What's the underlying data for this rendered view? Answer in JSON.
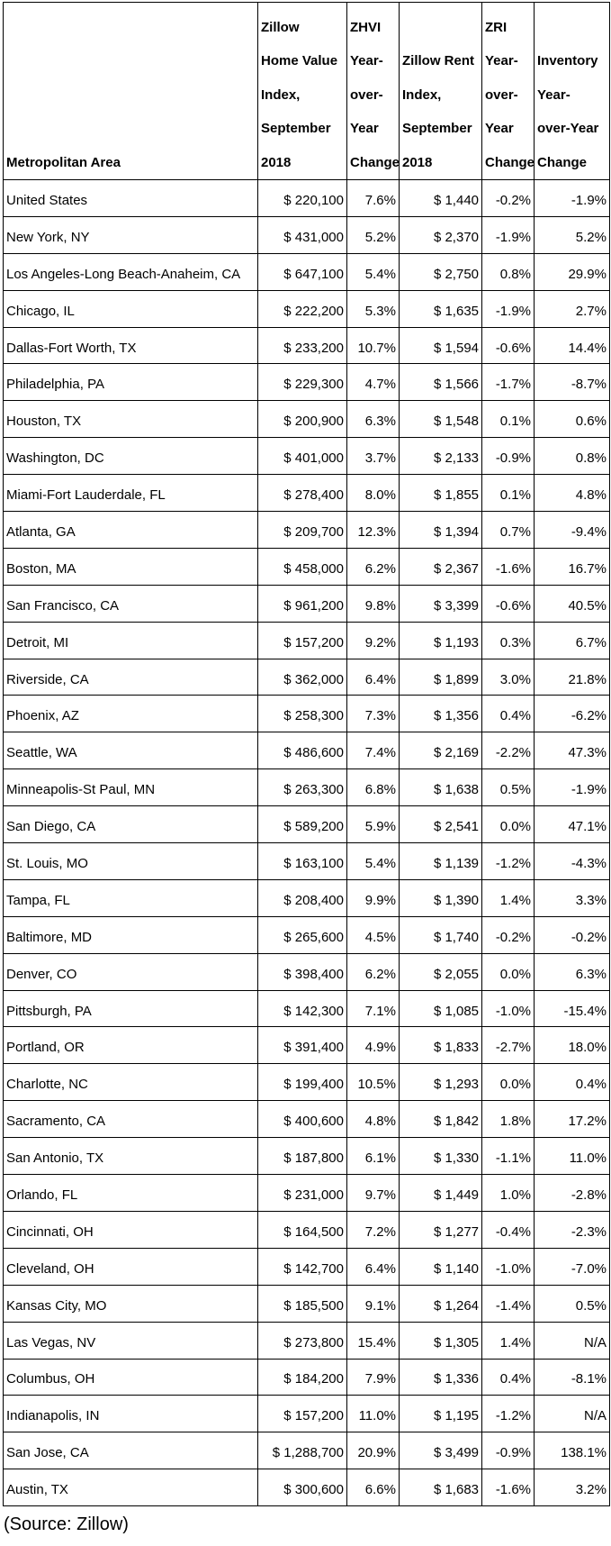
{
  "table": {
    "headers": [
      [
        "Metropolitan Area"
      ],
      [
        "Zillow",
        "Home Value",
        "Index,",
        "September",
        "2018"
      ],
      [
        "ZHVI",
        "Year-",
        "over-",
        "Year",
        "Change"
      ],
      [
        "Zillow Rent",
        "Index,",
        "September",
        "2018"
      ],
      [
        "ZRI",
        "Year-",
        "over-",
        "Year",
        "Change"
      ],
      [
        "Inventory",
        "Year-",
        "over-Year",
        "Change"
      ]
    ],
    "rows": [
      [
        "United States",
        "$ 220,100",
        "7.6%",
        "$ 1,440",
        "-0.2%",
        "-1.9%"
      ],
      [
        "New York, NY",
        "$ 431,000",
        "5.2%",
        "$ 2,370",
        "-1.9%",
        "5.2%"
      ],
      [
        "Los Angeles-Long Beach-Anaheim, CA",
        "$ 647,100",
        "5.4%",
        "$ 2,750",
        "0.8%",
        "29.9%"
      ],
      [
        "Chicago, IL",
        "$ 222,200",
        "5.3%",
        "$ 1,635",
        "-1.9%",
        "2.7%"
      ],
      [
        "Dallas-Fort Worth, TX",
        "$ 233,200",
        "10.7%",
        "$ 1,594",
        "-0.6%",
        "14.4%"
      ],
      [
        "Philadelphia, PA",
        "$ 229,300",
        "4.7%",
        "$ 1,566",
        "-1.7%",
        "-8.7%"
      ],
      [
        "Houston, TX",
        "$ 200,900",
        "6.3%",
        "$ 1,548",
        "0.1%",
        "0.6%"
      ],
      [
        "Washington, DC",
        "$ 401,000",
        "3.7%",
        "$ 2,133",
        "-0.9%",
        "0.8%"
      ],
      [
        "Miami-Fort Lauderdale, FL",
        "$ 278,400",
        "8.0%",
        "$ 1,855",
        "0.1%",
        "4.8%"
      ],
      [
        "Atlanta, GA",
        "$ 209,700",
        "12.3%",
        "$ 1,394",
        "0.7%",
        "-9.4%"
      ],
      [
        "Boston, MA",
        "$ 458,000",
        "6.2%",
        "$ 2,367",
        "-1.6%",
        "16.7%"
      ],
      [
        "San Francisco, CA",
        "$ 961,200",
        "9.8%",
        "$ 3,399",
        "-0.6%",
        "40.5%"
      ],
      [
        "Detroit, MI",
        "$ 157,200",
        "9.2%",
        "$ 1,193",
        "0.3%",
        "6.7%"
      ],
      [
        "Riverside, CA",
        "$ 362,000",
        "6.4%",
        "$ 1,899",
        "3.0%",
        "21.8%"
      ],
      [
        "Phoenix, AZ",
        "$ 258,300",
        "7.3%",
        "$ 1,356",
        "0.4%",
        "-6.2%"
      ],
      [
        "Seattle, WA",
        "$ 486,600",
        "7.4%",
        "$ 2,169",
        "-2.2%",
        "47.3%"
      ],
      [
        "Minneapolis-St Paul, MN",
        "$ 263,300",
        "6.8%",
        "$ 1,638",
        "0.5%",
        "-1.9%"
      ],
      [
        "San Diego, CA",
        "$ 589,200",
        "5.9%",
        "$ 2,541",
        "0.0%",
        "47.1%"
      ],
      [
        "St. Louis, MO",
        "$ 163,100",
        "5.4%",
        "$ 1,139",
        "-1.2%",
        "-4.3%"
      ],
      [
        "Tampa, FL",
        "$ 208,400",
        "9.9%",
        "$ 1,390",
        "1.4%",
        "3.3%"
      ],
      [
        "Baltimore, MD",
        "$ 265,600",
        "4.5%",
        "$ 1,740",
        "-0.2%",
        "-0.2%"
      ],
      [
        "Denver, CO",
        "$ 398,400",
        "6.2%",
        "$ 2,055",
        "0.0%",
        "6.3%"
      ],
      [
        "Pittsburgh, PA",
        "$ 142,300",
        "7.1%",
        "$ 1,085",
        "-1.0%",
        "-15.4%"
      ],
      [
        "Portland, OR",
        "$ 391,400",
        "4.9%",
        "$ 1,833",
        "-2.7%",
        "18.0%"
      ],
      [
        "Charlotte, NC",
        "$ 199,400",
        "10.5%",
        "$ 1,293",
        "0.0%",
        "0.4%"
      ],
      [
        "Sacramento, CA",
        "$ 400,600",
        "4.8%",
        "$ 1,842",
        "1.8%",
        "17.2%"
      ],
      [
        "San Antonio, TX",
        "$ 187,800",
        "6.1%",
        "$ 1,330",
        "-1.1%",
        "11.0%"
      ],
      [
        "Orlando, FL",
        "$ 231,000",
        "9.7%",
        "$ 1,449",
        "1.0%",
        "-2.8%"
      ],
      [
        "Cincinnati, OH",
        "$ 164,500",
        "7.2%",
        "$ 1,277",
        "-0.4%",
        "-2.3%"
      ],
      [
        "Cleveland, OH",
        "$ 142,700",
        "6.4%",
        "$ 1,140",
        "-1.0%",
        "-7.0%"
      ],
      [
        "Kansas City, MO",
        "$ 185,500",
        "9.1%",
        "$ 1,264",
        "-1.4%",
        "0.5%"
      ],
      [
        "Las Vegas, NV",
        "$ 273,800",
        "15.4%",
        "$ 1,305",
        "1.4%",
        "N/A"
      ],
      [
        "Columbus, OH",
        "$ 184,200",
        "7.9%",
        "$ 1,336",
        "0.4%",
        "-8.1%"
      ],
      [
        "Indianapolis, IN",
        "$ 157,200",
        "11.0%",
        "$ 1,195",
        "-1.2%",
        "N/A"
      ],
      [
        "San Jose, CA",
        "$ 1,288,700",
        "20.9%",
        "$ 3,499",
        "-0.9%",
        "138.1%"
      ],
      [
        "Austin, TX",
        "$ 300,600",
        "6.6%",
        "$ 1,683",
        "-1.6%",
        "3.2%"
      ]
    ]
  },
  "footer": {
    "source": "(Source: Zillow)"
  }
}
